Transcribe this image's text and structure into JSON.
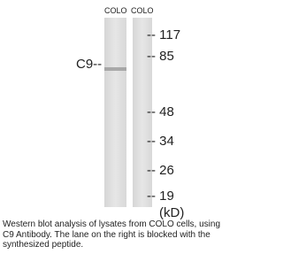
{
  "lanes": [
    "COLO",
    "COLO"
  ],
  "band_label": "C9--",
  "markers": [
    117,
    85,
    48,
    34,
    26,
    19
  ],
  "unit": "(kD)",
  "caption": [
    "Western blot analysis of lysates from COLO cells, using",
    "C9 Antibody. The lane on the right is blocked with the",
    "synthesized peptide."
  ]
}
